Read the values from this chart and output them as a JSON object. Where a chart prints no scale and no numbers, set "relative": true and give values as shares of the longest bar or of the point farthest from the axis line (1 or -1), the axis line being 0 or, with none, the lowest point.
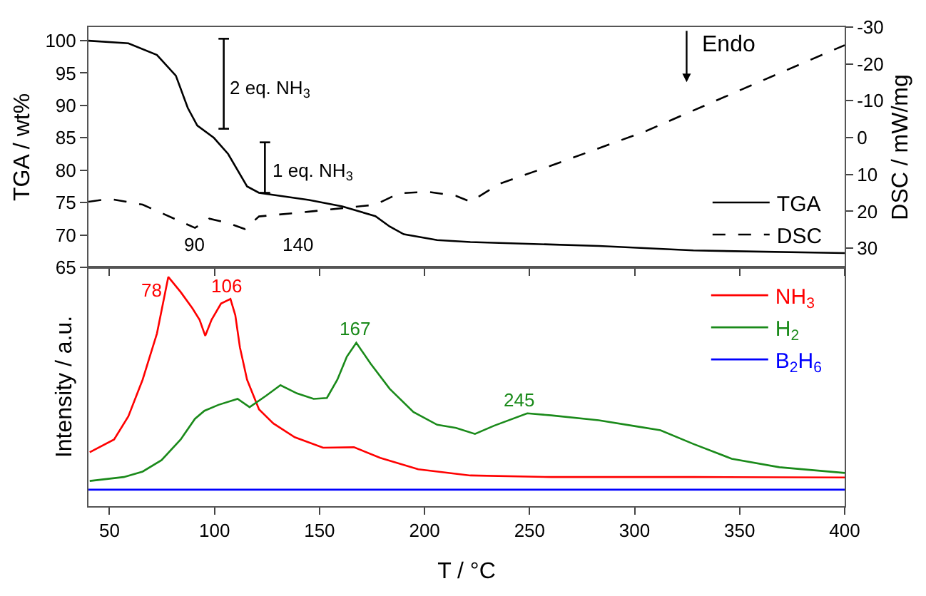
{
  "chart_data": [
    {
      "type": "line",
      "ylabel": "TGA / wt%",
      "y2label": "DSC / mW/mg",
      "xlim": [
        40,
        400
      ],
      "ylim": [
        65,
        102.1
      ],
      "yticks": [
        65,
        70,
        75,
        80,
        85,
        90,
        95,
        100
      ],
      "y2lim": [
        35.2,
        -30
      ],
      "y2ticks": [
        -30,
        -20,
        -10,
        0,
        10,
        20,
        30
      ],
      "tick_labels": "y",
      "legend": "bottom right",
      "series": [
        {
          "name": "TGA",
          "color": "#000000",
          "x": [
            40,
            59,
            72.6,
            81.6,
            87.3,
            91.8,
            99.7,
            106.5,
            115.5,
            121.2,
            145,
            160.8,
            176.6,
            183.4,
            190.1,
            206,
            221.8,
            283,
            328,
            400
          ],
          "values": [
            100,
            99.6,
            97.8,
            94.6,
            89.6,
            86.9,
            85.0,
            82.5,
            77.5,
            76.5,
            75.4,
            74.4,
            72.9,
            71.3,
            70.1,
            69.2,
            68.9,
            68.3,
            67.6,
            67.2
          ]
        },
        {
          "name": "DSC",
          "axis": "y2",
          "line_style": "dashed",
          "color": "#000000",
          "x": [
            40,
            50,
            65.8,
            90.7,
            97.5,
            106.5,
            114.4,
            121.2,
            145,
            176.6,
            188,
            201.5,
            215,
            221.8,
            235.4,
            260.3,
            305.5,
            350.7,
            400
          ],
          "values": [
            17.4,
            16.6,
            18.2,
            24.5,
            22.0,
            23.2,
            24.8,
            21.4,
            20.1,
            18.2,
            15.1,
            14.7,
            15.8,
            17.4,
            12.6,
            7.6,
            -1.8,
            -13.0,
            -25.1
          ]
        },
        {
          "type": "line",
          "color": "#000000",
          "x": [
            104.4,
            104.4
          ],
          "values": [
            100.3,
            86.4
          ],
          "xerrors": [
            2.5,
            2.5
          ]
        },
        {
          "type": "line",
          "color": "#000000",
          "x": [
            124,
            124
          ],
          "values": [
            84.3,
            76.5
          ],
          "xerrors": [
            2.5,
            2.5
          ]
        }
      ],
      "annotations": [
        {
          "text": "2 eq. NH$_{3}$",
          "x": 106,
          "y": 92.5
        },
        {
          "text": "1 eq. NH$_{3}$",
          "x": 126,
          "y": 79.7
        },
        "90",
        "140",
        "Endo"
      ]
    },
    {
      "type": "line",
      "relative": true,
      "xlabel": "T / °C",
      "ylabel": "Intensity / a.u.",
      "xlim": [
        40,
        400
      ],
      "xticks": [
        50,
        100,
        150,
        200,
        250,
        300,
        350,
        400
      ],
      "legend": "top right",
      "series": [
        {
          "name": "NH$_{3}$",
          "color": "#ff0000",
          "x": [
            40.6,
            52.2,
            59,
            65.8,
            72.6,
            78,
            83.9,
            89.5,
            92.9,
            95.6,
            98.6,
            103.1,
            107.6,
            109.9,
            112.1,
            115.5,
            121.2,
            128,
            138.2,
            151.7,
            166.4,
            178.9,
            197,
            221.8,
            260.3,
            328.1,
            400
          ],
          "values": [
            0.235,
            0.291,
            0.392,
            0.552,
            0.753,
            1.0,
            0.934,
            0.863,
            0.813,
            0.743,
            0.813,
            0.884,
            0.904,
            0.833,
            0.693,
            0.552,
            0.422,
            0.361,
            0.301,
            0.255,
            0.257,
            0.211,
            0.161,
            0.134,
            0.127,
            0.127,
            0.125
          ]
        },
        {
          "name": "H$_{2}$",
          "color": "#1a8a1a",
          "x": [
            40.6,
            56.8,
            65.8,
            74.8,
            83.9,
            90.7,
            95.2,
            101.9,
            111,
            116.7,
            124.6,
            131.4,
            139.3,
            147.2,
            153.5,
            158.5,
            163,
            167.5,
            174.3,
            183.4,
            194.7,
            206,
            215,
            224,
            233.1,
            248.9,
            260.3,
            282.9,
            301,
            312.3,
            328.1,
            346.2,
            368.9,
            400
          ],
          "values": [
            0.11,
            0.127,
            0.151,
            0.201,
            0.291,
            0.381,
            0.416,
            0.442,
            0.468,
            0.432,
            0.482,
            0.528,
            0.492,
            0.468,
            0.472,
            0.552,
            0.652,
            0.713,
            0.622,
            0.512,
            0.411,
            0.355,
            0.341,
            0.315,
            0.351,
            0.405,
            0.396,
            0.375,
            0.348,
            0.331,
            0.271,
            0.207,
            0.17,
            0.145
          ]
        },
        {
          "name": "B$_{2}$H$_{6}$",
          "color": "#0000ff",
          "x": [
            40,
            220,
            400
          ],
          "values": [
            0.072,
            0.072,
            0.072
          ]
        }
      ],
      "annotations": [
        {
          "text": "78",
          "x": 78,
          "y": 1.0
        },
        {
          "text": "106",
          "x": 106,
          "y": 0.904
        },
        {
          "text": "167",
          "x": 167,
          "y": 0.713
        },
        {
          "text": "245",
          "x": 245,
          "y": 0.405
        }
      ]
    }
  ]
}
